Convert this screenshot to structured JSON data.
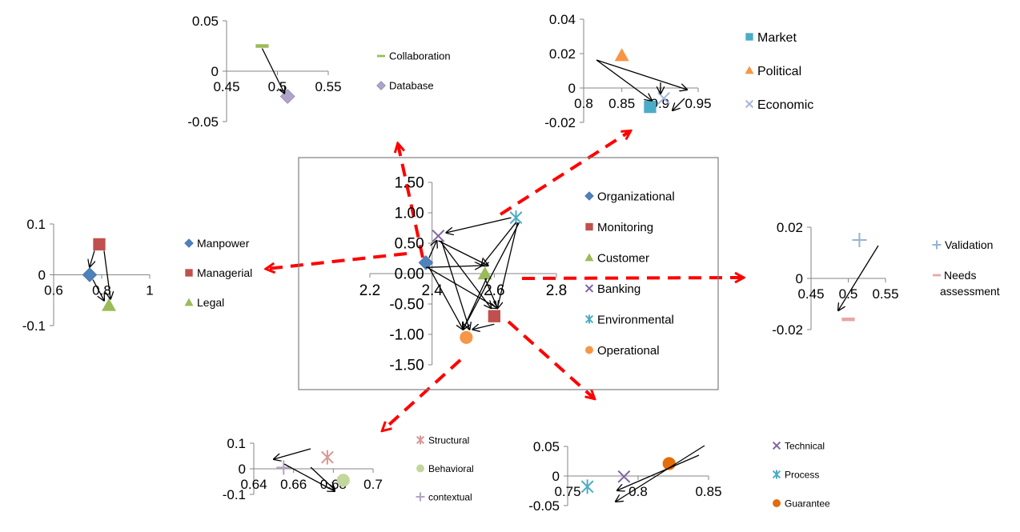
{
  "colors": {
    "organizational": "#4F81BD",
    "monitoring": "#C0504D",
    "customer": "#9BBB59",
    "banking": "#8064A2",
    "environmental": "#4BACC6",
    "operational": "#F79646",
    "collaboration": "#9BBB59",
    "database": "#B3A2C7",
    "market": "#4BACC6",
    "political": "#F79646",
    "economic": "#A6B6D9",
    "manpower": "#4F81BD",
    "managerial": "#C0504D",
    "legal": "#9BBB59",
    "validation": "#95B3D7",
    "needs_assessment": "#E6A7A5",
    "structural": "#D99694",
    "behavioral": "#C3D69B",
    "contextual": "#B3A2C7",
    "technical": "#8064A2",
    "process": "#4BACC6",
    "guarantee": "#E46C0A",
    "red_arrow": "#FF0000"
  },
  "chart_data": [
    {
      "id": "main",
      "type": "scatter",
      "xlim": [
        2.2,
        2.8
      ],
      "ylim": [
        -1.5,
        1.5
      ],
      "xticks": [
        "2.2",
        "2.4",
        "2.6",
        "2.8"
      ],
      "yticks": [
        "1.50",
        "1.00",
        "0.50",
        "0.00",
        "-0.50",
        "-1.00",
        "-1.50"
      ],
      "legend_position": "right",
      "series": [
        {
          "name": "Organizational",
          "marker": "diamond",
          "x": 2.38,
          "y": 0.18
        },
        {
          "name": "Monitoring",
          "marker": "square",
          "x": 2.6,
          "y": -0.7
        },
        {
          "name": "Customer",
          "marker": "triangle",
          "x": 2.57,
          "y": 0.0
        },
        {
          "name": "Banking",
          "marker": "x",
          "x": 2.42,
          "y": 0.62
        },
        {
          "name": "Environmental",
          "marker": "star",
          "x": 2.67,
          "y": 0.92
        },
        {
          "name": "Operational",
          "marker": "circle",
          "x": 2.51,
          "y": -1.05
        }
      ]
    },
    {
      "id": "top-left",
      "type": "scatter",
      "xlim": [
        0.45,
        0.55
      ],
      "ylim": [
        -0.05,
        0.05
      ],
      "xticks": [
        "0.45",
        "0.5",
        "0.55"
      ],
      "yticks": [
        "0.05",
        "0",
        "-0.05"
      ],
      "series": [
        {
          "name": "Collaboration",
          "marker": "dash",
          "x": 0.485,
          "y": 0.025
        },
        {
          "name": "Database",
          "marker": "diamond",
          "x": 0.51,
          "y": -0.025
        }
      ]
    },
    {
      "id": "top-right",
      "type": "scatter",
      "xlim": [
        0.8,
        0.95
      ],
      "ylim": [
        -0.02,
        0.04
      ],
      "xticks": [
        "0.8",
        "0.85",
        "0.9",
        "0.95"
      ],
      "yticks": [
        "0.04",
        "0.02",
        "0",
        "-0.02"
      ],
      "series": [
        {
          "name": "Market",
          "marker": "square",
          "x": 0.887,
          "y": -0.011
        },
        {
          "name": "Political",
          "marker": "triangle",
          "x": 0.85,
          "y": 0.019
        },
        {
          "name": "Economic",
          "marker": "x",
          "x": 0.905,
          "y": -0.006
        }
      ]
    },
    {
      "id": "left",
      "type": "scatter",
      "xlim": [
        0.6,
        1.0
      ],
      "ylim": [
        -0.1,
        0.1
      ],
      "xticks": [
        "0.6",
        "0.8",
        "1"
      ],
      "yticks": [
        "0.1",
        "0",
        "-0.1"
      ],
      "series": [
        {
          "name": "Manpower",
          "marker": "diamond",
          "x": 0.75,
          "y": 0.0
        },
        {
          "name": "Managerial",
          "marker": "square",
          "x": 0.79,
          "y": 0.06
        },
        {
          "name": "Legal",
          "marker": "triangle",
          "x": 0.83,
          "y": -0.06
        }
      ]
    },
    {
      "id": "right",
      "type": "scatter",
      "xlim": [
        0.45,
        0.55
      ],
      "ylim": [
        -0.02,
        0.02
      ],
      "xticks": [
        "0.45",
        "0.5",
        "0.55"
      ],
      "yticks": [
        "0.02",
        "0",
        "-0.02"
      ],
      "series": [
        {
          "name": "Validation",
          "marker": "plus",
          "x": 0.515,
          "y": 0.015
        },
        {
          "name": "Needs assessment",
          "marker": "dash",
          "x": 0.5,
          "y": -0.016
        }
      ]
    },
    {
      "id": "bottom-left",
      "type": "scatter",
      "xlim": [
        0.64,
        0.7
      ],
      "ylim": [
        -0.1,
        0.1
      ],
      "xticks": [
        "0.64",
        "0.66",
        "0.68",
        "0.7"
      ],
      "yticks": [
        "0.1",
        "0",
        "-0.1"
      ],
      "series": [
        {
          "name": "Structural",
          "marker": "star",
          "x": 0.677,
          "y": 0.045
        },
        {
          "name": "Behavioral",
          "marker": "circle",
          "x": 0.685,
          "y": -0.045
        },
        {
          "name": "contextual",
          "marker": "plus",
          "x": 0.655,
          "y": 0.005
        }
      ]
    },
    {
      "id": "bottom-right",
      "type": "scatter",
      "xlim": [
        0.75,
        0.85
      ],
      "ylim": [
        -0.05,
        0.05
      ],
      "xticks": [
        "0.75",
        "0.8",
        "0.85"
      ],
      "yticks": [
        "0.05",
        "0",
        "-0.05"
      ],
      "series": [
        {
          "name": "Technical",
          "marker": "x",
          "x": 0.79,
          "y": -0.001
        },
        {
          "name": "Process",
          "marker": "star",
          "x": 0.764,
          "y": -0.018
        },
        {
          "name": "Guarantee",
          "marker": "circle",
          "x": 0.822,
          "y": 0.021
        }
      ]
    }
  ]
}
